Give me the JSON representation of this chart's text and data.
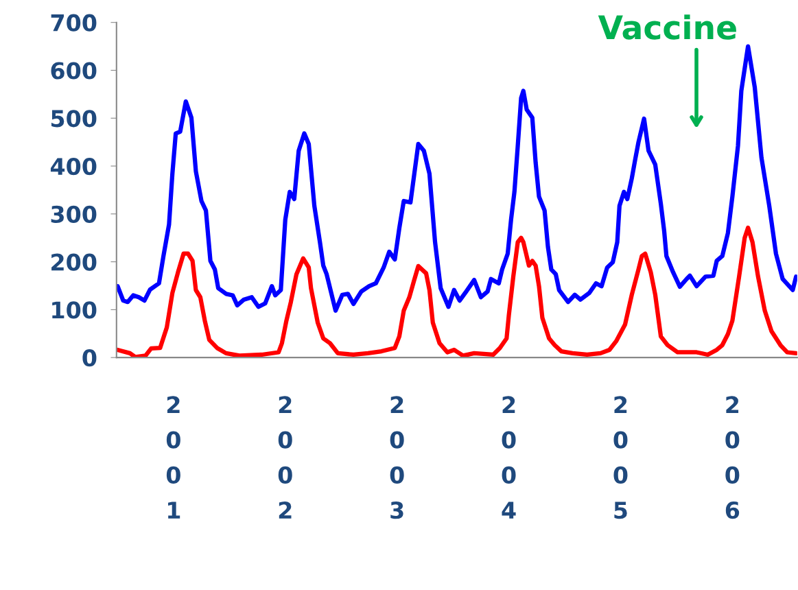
{
  "chart_data": {
    "type": "line",
    "xlim": [
      2000.49,
      2006.58
    ],
    "xticks": [
      2001,
      2002,
      2003,
      2004,
      2005,
      2006
    ],
    "ylim": [
      0,
      700
    ],
    "yticks": [
      0,
      100,
      200,
      300,
      400,
      500,
      600,
      700
    ],
    "grid": false,
    "legend": false,
    "marker": "none",
    "line_style": "solid",
    "annotations": [
      "Vaccine"
    ],
    "series": [
      {
        "color": "#0000ff",
        "x": [
          2000.5,
          2000.55,
          2000.59,
          2000.64,
          2000.69,
          2000.74,
          2000.79,
          2000.87,
          2000.91,
          2000.96,
          2000.99,
          2001.02,
          2001.06,
          2001.11,
          2001.16,
          2001.2,
          2001.25,
          2001.29,
          2001.33,
          2001.37,
          2001.4,
          2001.47,
          2001.53,
          2001.57,
          2001.63,
          2001.7,
          2001.76,
          2001.82,
          2001.88,
          2001.91,
          2001.96,
          2002.0,
          2002.04,
          2002.08,
          2002.12,
          2002.17,
          2002.21,
          2002.26,
          2002.31,
          2002.34,
          2002.37,
          2002.45,
          2002.51,
          2002.56,
          2002.61,
          2002.68,
          2002.75,
          2002.81,
          2002.88,
          2002.93,
          2002.98,
          2003.02,
          2003.06,
          2003.12,
          2003.19,
          2003.24,
          2003.29,
          2003.34,
          2003.39,
          2003.46,
          2003.51,
          2003.56,
          2003.61,
          2003.69,
          2003.75,
          2003.81,
          2003.84,
          2003.91,
          2003.94,
          2003.99,
          2004.02,
          2004.05,
          2004.08,
          2004.11,
          2004.13,
          2004.16,
          2004.21,
          2004.24,
          2004.27,
          2004.32,
          2004.35,
          2004.38,
          2004.42,
          2004.45,
          2004.53,
          2004.59,
          2004.64,
          2004.72,
          2004.78,
          2004.83,
          2004.88,
          2004.93,
          2004.97,
          2004.99,
          2005.03,
          2005.06,
          2005.1,
          2005.13,
          2005.16,
          2005.21,
          2005.25,
          2005.31,
          2005.36,
          2005.39,
          2005.41,
          2005.47,
          2005.53,
          2005.59,
          2005.62,
          2005.68,
          2005.76,
          2005.83,
          2005.86,
          2005.91,
          2005.96,
          2006.0,
          2006.05,
          2006.08,
          2006.14,
          2006.2,
          2006.26,
          2006.33,
          2006.39,
          2006.45,
          2006.54,
          2006.57
        ],
        "values": [
          149,
          119,
          116,
          130,
          126,
          119,
          142,
          155,
          212,
          278,
          384,
          468,
          472,
          535,
          501,
          389,
          327,
          307,
          202,
          184,
          145,
          133,
          130,
          109,
          121,
          126,
          106,
          113,
          149,
          130,
          141,
          288,
          346,
          331,
          432,
          468,
          446,
          317,
          241,
          192,
          174,
          98,
          131,
          133,
          112,
          138,
          149,
          155,
          188,
          221,
          205,
          270,
          327,
          324,
          446,
          432,
          384,
          241,
          145,
          106,
          141,
          119,
          135,
          162,
          126,
          138,
          164,
          155,
          184,
          217,
          288,
          346,
          442,
          542,
          557,
          518,
          501,
          407,
          336,
          307,
          231,
          184,
          174,
          141,
          116,
          131,
          121,
          135,
          155,
          149,
          188,
          199,
          241,
          317,
          346,
          331,
          374,
          413,
          450,
          499,
          432,
          403,
          321,
          264,
          212,
          178,
          148,
          164,
          171,
          149,
          169,
          171,
          202,
          212,
          260,
          336,
          442,
          557,
          650,
          565,
          418,
          317,
          217,
          164,
          141,
          169
        ]
      },
      {
        "color": "#ff0000",
        "x": [
          2000.5,
          2000.61,
          2000.66,
          2000.75,
          2000.8,
          2000.88,
          2000.94,
          2000.99,
          2001.04,
          2001.09,
          2001.13,
          2001.17,
          2001.2,
          2001.24,
          2001.28,
          2001.32,
          2001.39,
          2001.47,
          2001.59,
          2001.79,
          2001.94,
          2001.97,
          2002.01,
          2002.05,
          2002.1,
          2002.16,
          2002.21,
          2002.23,
          2002.29,
          2002.34,
          2002.4,
          2002.47,
          2002.61,
          2002.74,
          2002.86,
          2002.98,
          2003.02,
          2003.06,
          2003.11,
          2003.15,
          2003.19,
          2003.26,
          2003.29,
          2003.32,
          2003.38,
          2003.45,
          2003.51,
          2003.59,
          2003.69,
          2003.86,
          2003.92,
          2003.98,
          2004.0,
          2004.04,
          2004.08,
          2004.11,
          2004.13,
          2004.18,
          2004.21,
          2004.24,
          2004.27,
          2004.3,
          2004.36,
          2004.41,
          2004.47,
          2004.57,
          2004.7,
          2004.82,
          2004.9,
          2004.96,
          2005.04,
          2005.1,
          2005.16,
          2005.19,
          2005.22,
          2005.27,
          2005.31,
          2005.36,
          2005.42,
          2005.51,
          2005.68,
          2005.78,
          2005.86,
          2005.91,
          2005.96,
          2006.0,
          2006.06,
          2006.11,
          2006.14,
          2006.18,
          2006.23,
          2006.29,
          2006.35,
          2006.43,
          2006.49,
          2006.57
        ],
        "values": [
          16,
          9,
          1,
          4,
          19,
          20,
          63,
          135,
          178,
          217,
          217,
          202,
          141,
          126,
          77,
          37,
          20,
          9,
          4,
          6,
          11,
          30,
          77,
          116,
          174,
          207,
          188,
          145,
          73,
          40,
          30,
          9,
          6,
          9,
          13,
          20,
          44,
          98,
          126,
          159,
          191,
          176,
          141,
          73,
          30,
          11,
          16,
          4,
          9,
          6,
          20,
          40,
          88,
          169,
          241,
          250,
          241,
          192,
          202,
          192,
          149,
          83,
          40,
          26,
          13,
          9,
          6,
          9,
          16,
          34,
          69,
          131,
          184,
          212,
          217,
          178,
          131,
          44,
          26,
          11,
          11,
          6,
          16,
          26,
          49,
          77,
          169,
          250,
          271,
          241,
          169,
          98,
          55,
          26,
          11,
          9
        ]
      }
    ]
  }
}
